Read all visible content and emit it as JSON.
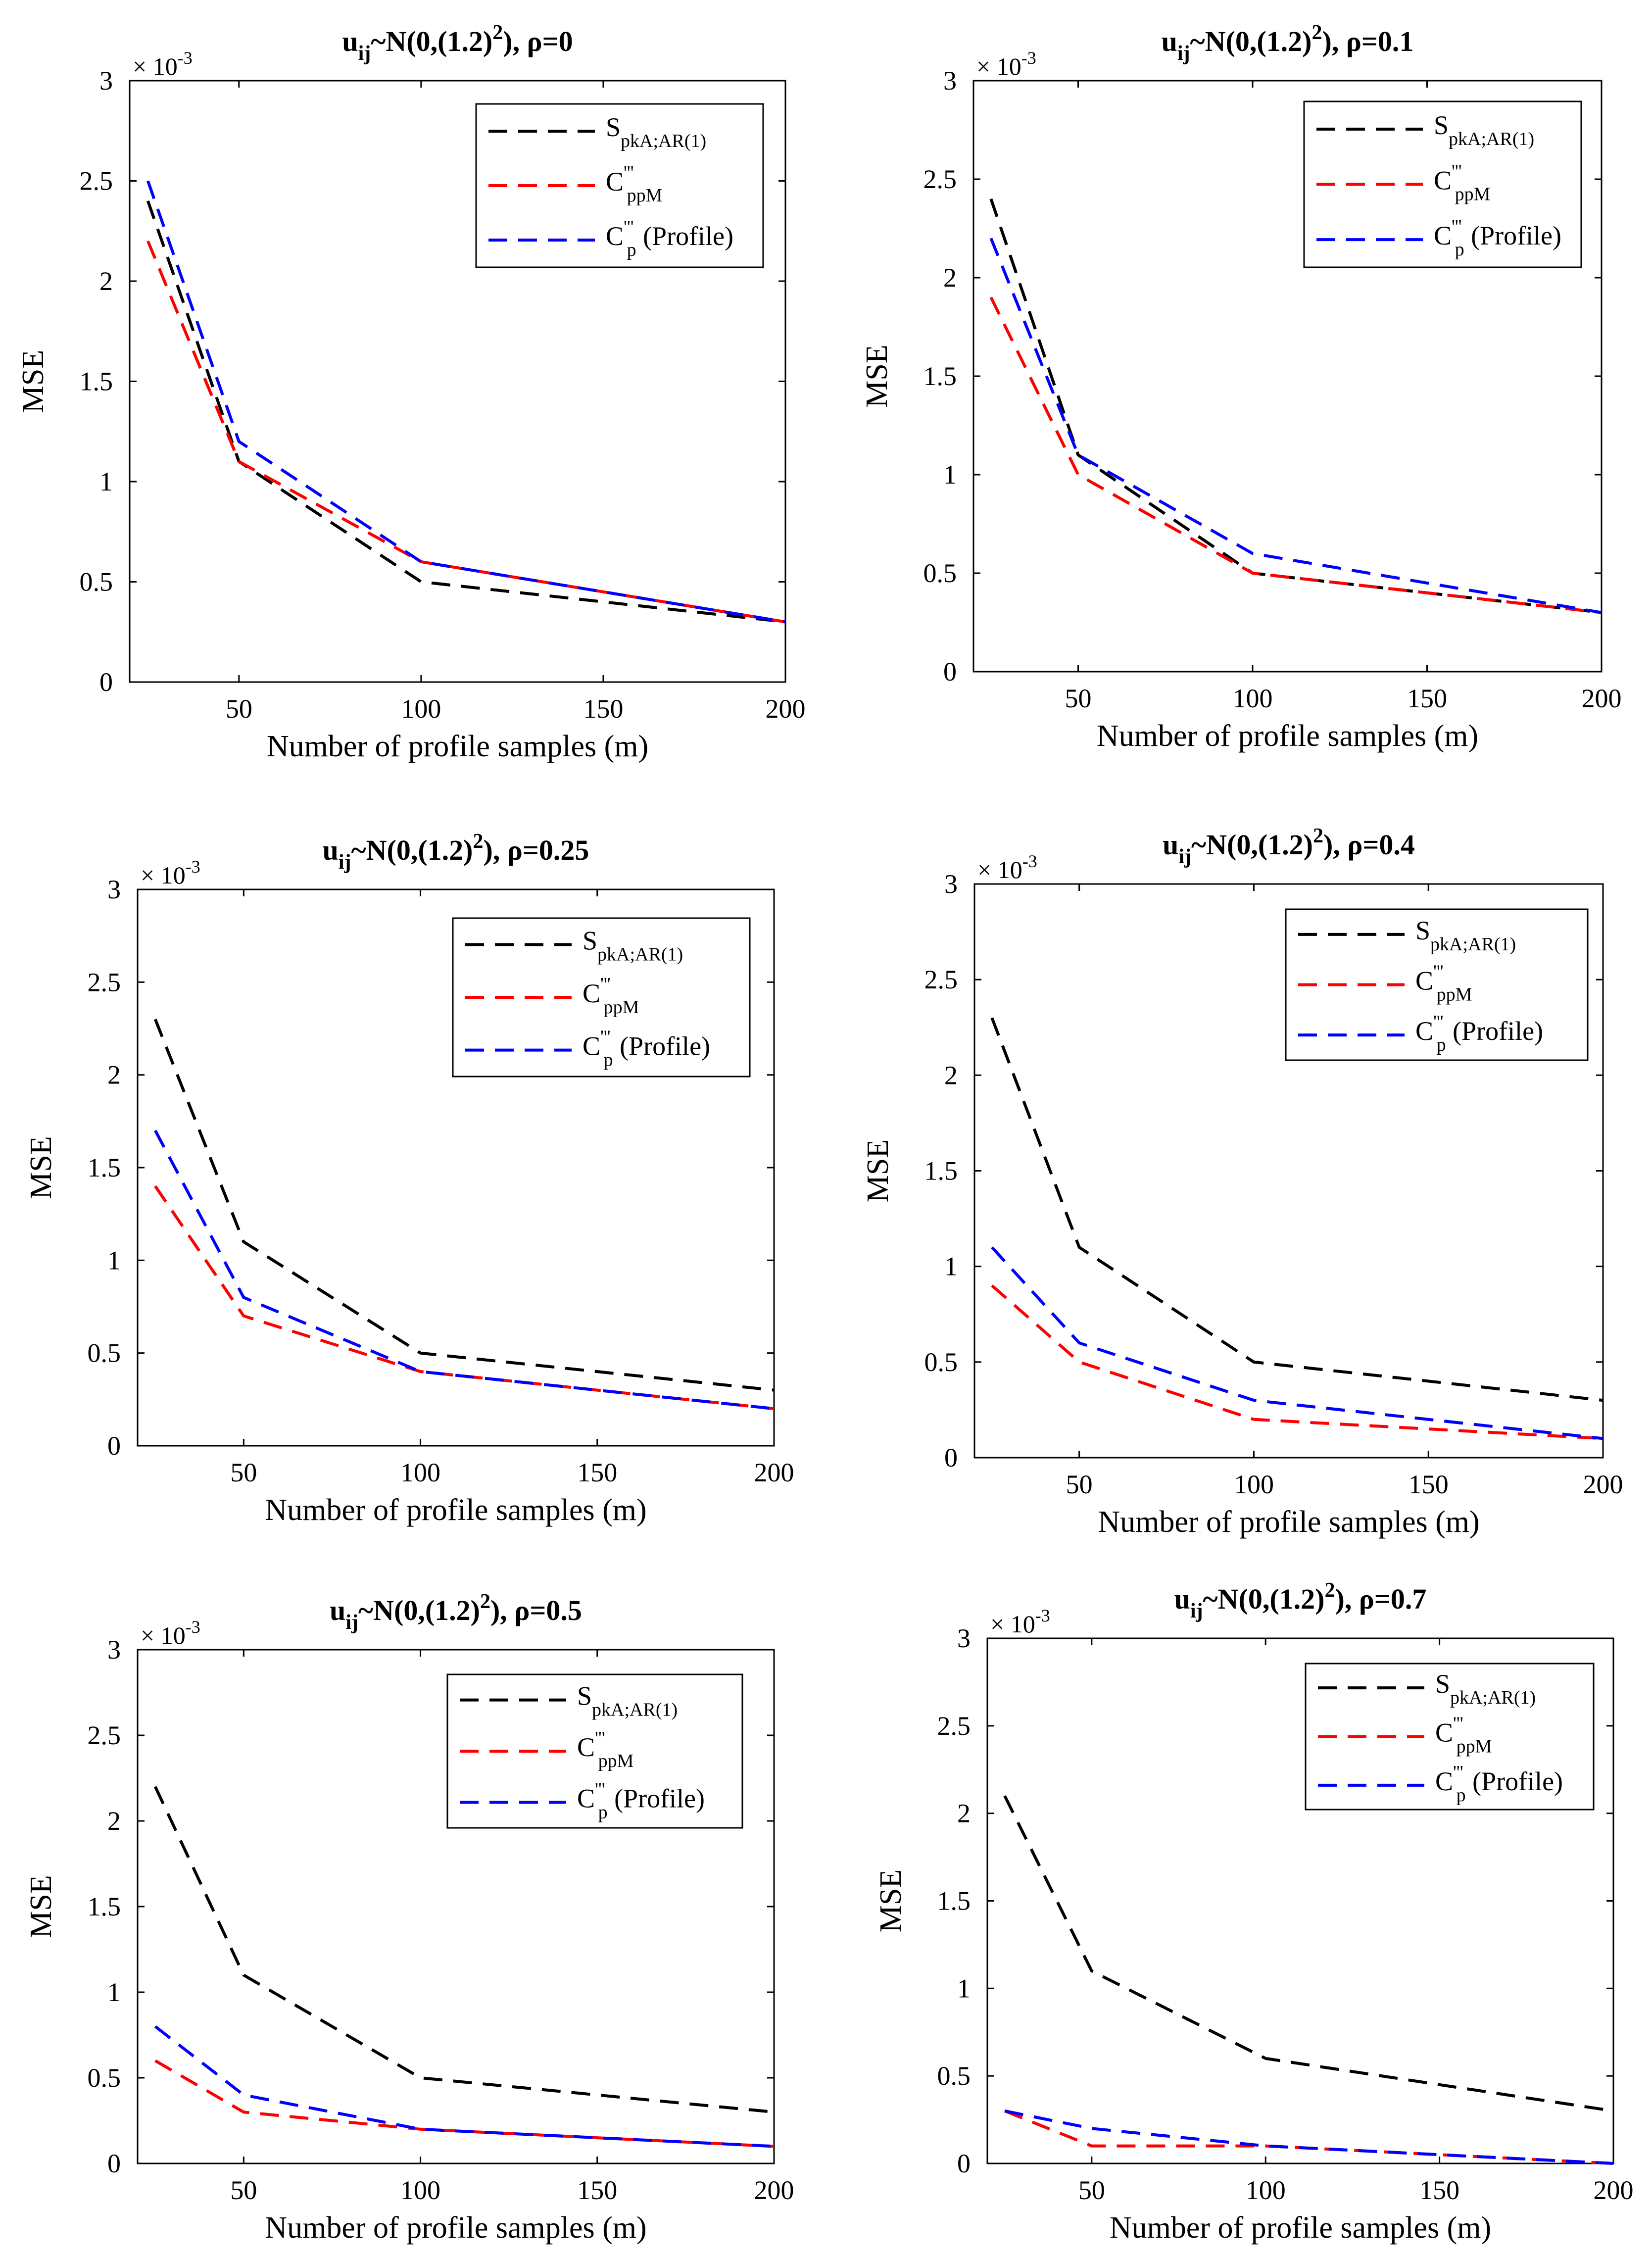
{
  "chart_data": [
    {
      "type": "line",
      "title": {
        "base": "u",
        "sub": "ij",
        "dist": "~N(0,(1.2)",
        "exp": "2",
        "tail": "), ρ=0"
      },
      "xlabel": "Number of profile samples (m)",
      "ylabel": "MSE",
      "scale_label": {
        "base": "× 10",
        "exp": "-3"
      },
      "xlim": [
        20,
        200
      ],
      "ylim": [
        0,
        3
      ],
      "xticks": [
        50,
        100,
        150,
        200
      ],
      "yticks": [
        0,
        0.5,
        1,
        1.5,
        2,
        2.5,
        3
      ],
      "ytick_labels": [
        "0",
        "0.5",
        "1",
        "1.5",
        "2",
        "2.5",
        "3"
      ],
      "x": [
        25,
        50,
        100,
        200
      ],
      "series": [
        {
          "name": "S_pkA;AR(1)",
          "color": "#000000",
          "values": [
            2.4,
            1.1,
            0.5,
            0.3
          ]
        },
        {
          "name": "C'''_ppM",
          "color": "#ff0000",
          "values": [
            2.2,
            1.1,
            0.6,
            0.3
          ]
        },
        {
          "name": "C'''_p (Profile)",
          "color": "#0000ff",
          "values": [
            2.5,
            1.2,
            0.6,
            0.3
          ]
        }
      ]
    },
    {
      "type": "line",
      "title": {
        "base": "u",
        "sub": "ij",
        "dist": "~N(0,(1.2)",
        "exp": "2",
        "tail": "), ρ=0.1"
      },
      "xlabel": "Number of profile samples (m)",
      "ylabel": "MSE",
      "scale_label": {
        "base": "× 10",
        "exp": "-3"
      },
      "xlim": [
        20,
        200
      ],
      "ylim": [
        0,
        3
      ],
      "xticks": [
        50,
        100,
        150,
        200
      ],
      "yticks": [
        0,
        0.5,
        1,
        1.5,
        2,
        2.5,
        3
      ],
      "ytick_labels": [
        "0",
        "0.5",
        "1",
        "1.5",
        "2",
        "2.5",
        "3"
      ],
      "x": [
        25,
        50,
        100,
        200
      ],
      "series": [
        {
          "name": "S_pkA;AR(1)",
          "color": "#000000",
          "values": [
            2.4,
            1.1,
            0.5,
            0.3
          ]
        },
        {
          "name": "C'''_ppM",
          "color": "#ff0000",
          "values": [
            1.9,
            1.0,
            0.5,
            0.3
          ]
        },
        {
          "name": "C'''_p (Profile)",
          "color": "#0000ff",
          "values": [
            2.2,
            1.1,
            0.6,
            0.3
          ]
        }
      ]
    },
    {
      "type": "line",
      "title": {
        "base": "u",
        "sub": "ij",
        "dist": "~N(0,(1.2)",
        "exp": "2",
        "tail": "), ρ=0.25"
      },
      "xlabel": "Number of profile samples (m)",
      "ylabel": "MSE",
      "scale_label": {
        "base": "× 10",
        "exp": "-3"
      },
      "xlim": [
        20,
        200
      ],
      "ylim": [
        0,
        3
      ],
      "xticks": [
        50,
        100,
        150,
        200
      ],
      "yticks": [
        0,
        0.5,
        1,
        1.5,
        2,
        2.5,
        3
      ],
      "ytick_labels": [
        "0",
        "0.5",
        "1",
        "1.5",
        "2",
        "2.5",
        "3"
      ],
      "x": [
        25,
        50,
        100,
        200
      ],
      "series": [
        {
          "name": "S_pkA;AR(1)",
          "color": "#000000",
          "values": [
            2.3,
            1.1,
            0.5,
            0.3
          ]
        },
        {
          "name": "C'''_ppM",
          "color": "#ff0000",
          "values": [
            1.4,
            0.7,
            0.4,
            0.2
          ]
        },
        {
          "name": "C'''_p (Profile)",
          "color": "#0000ff",
          "values": [
            1.7,
            0.8,
            0.4,
            0.2
          ]
        }
      ]
    },
    {
      "type": "line",
      "title": {
        "base": "u",
        "sub": "ij",
        "dist": "~N(0,(1.2)",
        "exp": "2",
        "tail": "), ρ=0.4"
      },
      "xlabel": "Number of profile samples (m)",
      "ylabel": "MSE",
      "scale_label": {
        "base": "× 10",
        "exp": "-3"
      },
      "xlim": [
        20,
        200
      ],
      "ylim": [
        0,
        3
      ],
      "xticks": [
        50,
        100,
        150,
        200
      ],
      "yticks": [
        0,
        0.5,
        1,
        1.5,
        2,
        2.5,
        3
      ],
      "ytick_labels": [
        "0",
        "0.5",
        "1",
        "1.5",
        "2",
        "2.5",
        "3"
      ],
      "x": [
        25,
        50,
        100,
        200
      ],
      "series": [
        {
          "name": "S_pkA;AR(1)",
          "color": "#000000",
          "values": [
            2.3,
            1.1,
            0.5,
            0.3
          ]
        },
        {
          "name": "C'''_ppM",
          "color": "#ff0000",
          "values": [
            0.9,
            0.5,
            0.2,
            0.1
          ]
        },
        {
          "name": "C'''_p (Profile)",
          "color": "#0000ff",
          "values": [
            1.1,
            0.6,
            0.3,
            0.1
          ]
        }
      ]
    },
    {
      "type": "line",
      "title": {
        "base": "u",
        "sub": "ij",
        "dist": "~N(0,(1.2)",
        "exp": "2",
        "tail": "), ρ=0.5"
      },
      "xlabel": "Number of profile samples (m)",
      "ylabel": "MSE",
      "scale_label": {
        "base": "× 10",
        "exp": "-3"
      },
      "xlim": [
        20,
        200
      ],
      "ylim": [
        0,
        3
      ],
      "xticks": [
        50,
        100,
        150,
        200
      ],
      "yticks": [
        0,
        0.5,
        1,
        1.5,
        2,
        2.5,
        3
      ],
      "ytick_labels": [
        "0",
        "0.5",
        "1",
        "1.5",
        "2",
        "2.5",
        "3"
      ],
      "x": [
        25,
        50,
        100,
        200
      ],
      "series": [
        {
          "name": "S_pkA;AR(1)",
          "color": "#000000",
          "values": [
            2.2,
            1.1,
            0.5,
            0.3
          ]
        },
        {
          "name": "C'''_ppM",
          "color": "#ff0000",
          "values": [
            0.6,
            0.3,
            0.2,
            0.1
          ]
        },
        {
          "name": "C'''_p (Profile)",
          "color": "#0000ff",
          "values": [
            0.8,
            0.4,
            0.2,
            0.1
          ]
        }
      ]
    },
    {
      "type": "line",
      "title": {
        "base": "u",
        "sub": "ij",
        "dist": "~N(0,(1.2)",
        "exp": "2",
        "tail": "), ρ=0.7"
      },
      "xlabel": "Number of profile samples (m)",
      "ylabel": "MSE",
      "scale_label": {
        "base": "× 10",
        "exp": "-3"
      },
      "xlim": [
        20,
        200
      ],
      "ylim": [
        0,
        3
      ],
      "xticks": [
        50,
        100,
        150,
        200
      ],
      "yticks": [
        0,
        0.5,
        1,
        1.5,
        2,
        2.5,
        3
      ],
      "ytick_labels": [
        "0",
        "0.5",
        "1",
        "1.5",
        "2",
        "2.5",
        "3"
      ],
      "x": [
        25,
        50,
        100,
        200
      ],
      "series": [
        {
          "name": "S_pkA;AR(1)",
          "color": "#000000",
          "values": [
            2.1,
            1.1,
            0.6,
            0.3
          ]
        },
        {
          "name": "C'''_ppM",
          "color": "#ff0000",
          "values": [
            0.3,
            0.1,
            0.1,
            0.0
          ]
        },
        {
          "name": "C'''_p (Profile)",
          "color": "#0000ff",
          "values": [
            0.3,
            0.2,
            0.1,
            0.0
          ]
        }
      ]
    }
  ],
  "legend": {
    "entries": [
      {
        "base": "S",
        "sub": "pkA;AR(1)",
        "sup": "",
        "suffix": ""
      },
      {
        "base": "C",
        "sub": "ppM",
        "sup": "'''",
        "suffix": ""
      },
      {
        "base": "C",
        "sub": "p",
        "sup": "'''",
        "suffix": " (Profile)"
      }
    ]
  }
}
